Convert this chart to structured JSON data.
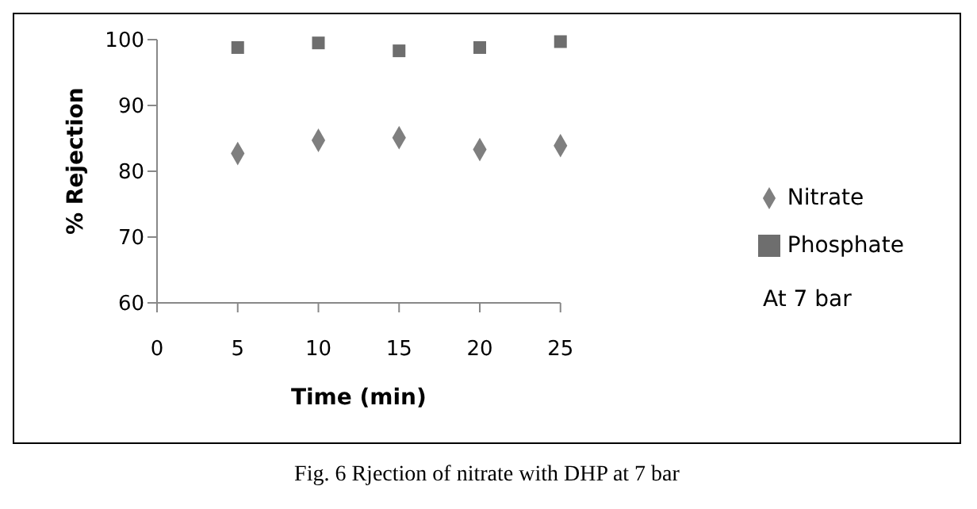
{
  "chart_data": {
    "type": "scatter",
    "xlabel": "Time (min)",
    "ylabel": "% Rejection",
    "x": [
      5,
      10,
      15,
      20,
      25
    ],
    "series": [
      {
        "name": "Nitrate",
        "color": "#7f7f7f",
        "marker": "diamond",
        "values": [
          82.7,
          84.7,
          85.1,
          83.3,
          83.9
        ]
      },
      {
        "name": "Phosphate",
        "color": "#6e6e6e",
        "marker": "square",
        "values": [
          98.8,
          99.5,
          98.3,
          98.8,
          99.7
        ]
      }
    ],
    "xlim": [
      0,
      25
    ],
    "xticks": [
      0,
      5,
      10,
      15,
      20,
      25
    ],
    "ylim": [
      60,
      100
    ],
    "yticks": [
      60,
      70,
      80,
      90,
      100
    ],
    "grid": false,
    "legend": "right",
    "annotations": [
      "At 7 bar",
      "Fig. 6 Rjection of nitrate with DHP at 7 bar"
    ]
  }
}
